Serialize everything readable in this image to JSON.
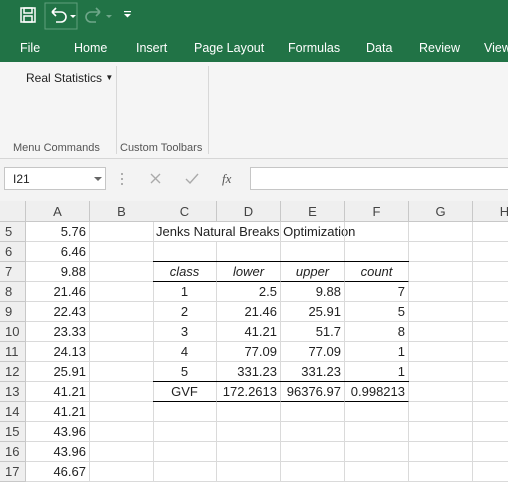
{
  "tabs": [
    "File",
    "Home",
    "Insert",
    "Page Layout",
    "Formulas",
    "Data",
    "Review",
    "View"
  ],
  "ribbon": {
    "button": "Real Statistics",
    "groups": [
      "Menu Commands",
      "Custom Toolbars"
    ]
  },
  "formula_bar": {
    "name_box": "I21",
    "function_icon": "fx"
  },
  "sheet": {
    "columns": [
      "A",
      "B",
      "C",
      "D",
      "E",
      "F",
      "G",
      "H"
    ],
    "rows": [
      {
        "row": 5,
        "cells": {
          "A": "5.76",
          "C": "Jenks Natural Breaks Optimization"
        }
      },
      {
        "row": 6,
        "cells": {
          "A": "6.46"
        }
      },
      {
        "row": 7,
        "cells": {
          "A": "9.88",
          "C": "class",
          "D": "lower",
          "E": "upper",
          "F": "count"
        }
      },
      {
        "row": 8,
        "cells": {
          "A": "21.46",
          "C": "1",
          "D": "2.5",
          "E": "9.88",
          "F": "7"
        }
      },
      {
        "row": 9,
        "cells": {
          "A": "22.43",
          "C": "2",
          "D": "21.46",
          "E": "25.91",
          "F": "5"
        }
      },
      {
        "row": 10,
        "cells": {
          "A": "23.33",
          "C": "3",
          "D": "41.21",
          "E": "51.7",
          "F": "8"
        }
      },
      {
        "row": 11,
        "cells": {
          "A": "24.13",
          "C": "4",
          "D": "77.09",
          "E": "77.09",
          "F": "1"
        }
      },
      {
        "row": 12,
        "cells": {
          "A": "25.91",
          "C": "5",
          "D": "331.23",
          "E": "331.23",
          "F": "1"
        }
      },
      {
        "row": 13,
        "cells": {
          "A": "41.21",
          "C": "GVF",
          "D": "172.2613",
          "E": "96376.97",
          "F": "0.998213"
        }
      },
      {
        "row": 14,
        "cells": {
          "A": "41.21"
        }
      },
      {
        "row": 15,
        "cells": {
          "A": "43.96"
        }
      },
      {
        "row": 16,
        "cells": {
          "A": "43.96"
        }
      },
      {
        "row": 17,
        "cells": {
          "A": "46.67"
        }
      }
    ]
  }
}
